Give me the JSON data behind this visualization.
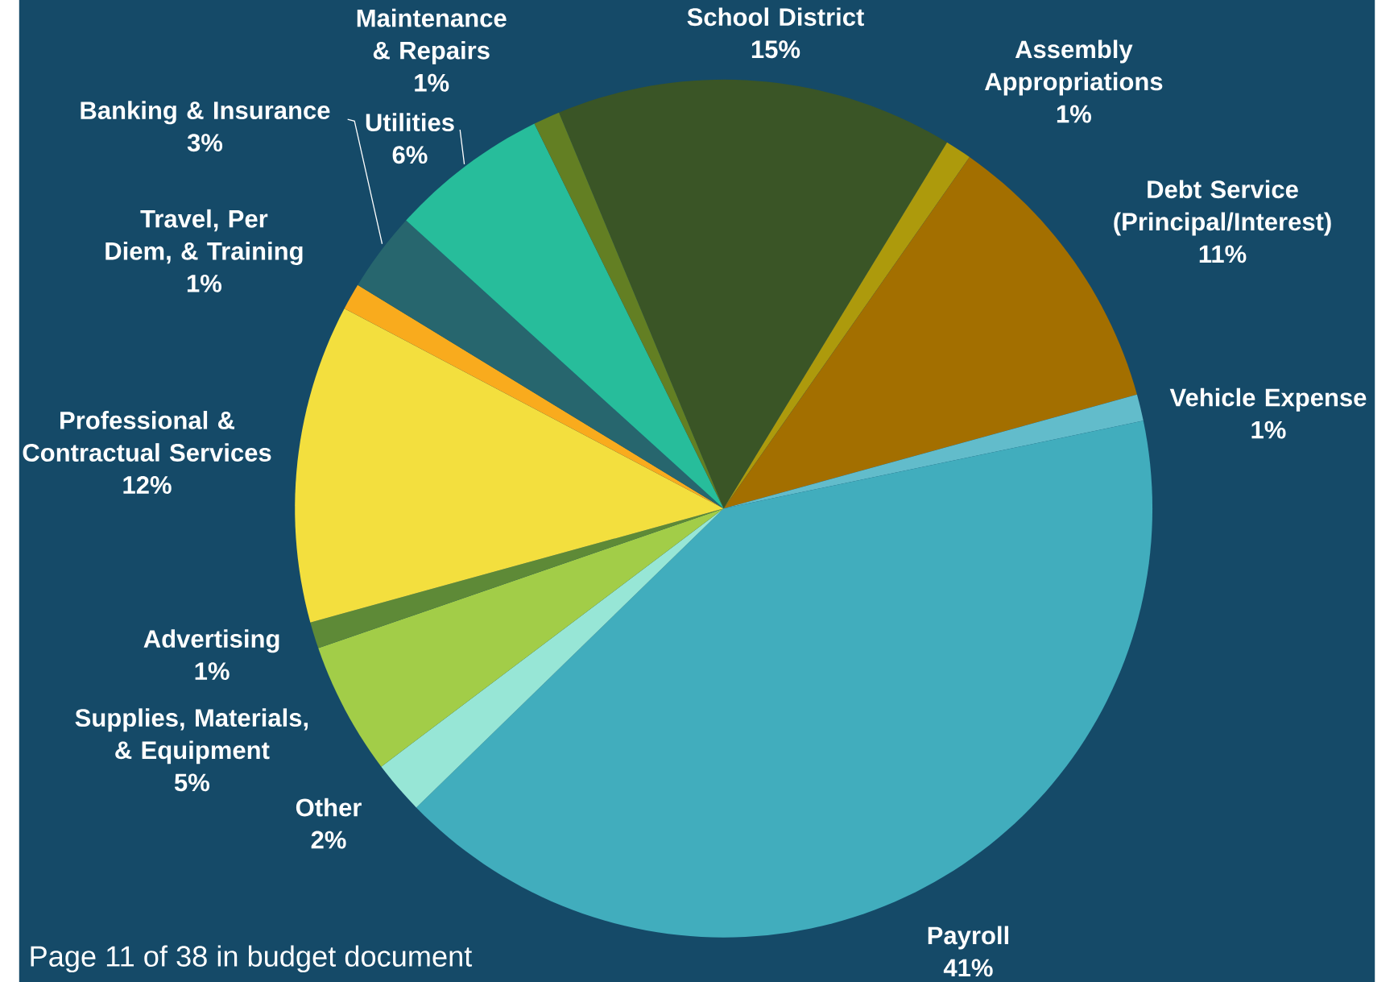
{
  "chart_data": {
    "type": "pie",
    "categories": [
      "School District",
      "Assembly Appropriations",
      "Debt Service (Principal/Interest)",
      "Vehicle Expense",
      "Payroll",
      "Other",
      "Supplies, Materials, & Equipment",
      "Advertising",
      "Professional & Contractual Services",
      "Travel, Per Diem, & Training",
      "Banking & Insurance",
      "Utilities",
      "Maintenance & Repairs"
    ],
    "values": [
      15,
      1,
      11,
      1,
      41,
      2,
      5,
      1,
      12,
      1,
      3,
      6,
      1
    ],
    "value_labels": [
      "15%",
      "1%",
      "11%",
      "1%",
      "41%",
      "2%",
      "5%",
      "1%",
      "12%",
      "1%",
      "3%",
      "6%",
      "1%"
    ],
    "colors": [
      "#3a5526",
      "#ad9a0c",
      "#a36f00",
      "#62bccb",
      "#41adbd",
      "#97e6d6",
      "#a2cd48",
      "#5e8a37",
      "#f3df3e",
      "#f9ab1d",
      "#27666e",
      "#27bd9b",
      "#637f23"
    ],
    "annotations": [
      "Page 11 of 38 in budget document"
    ]
  }
}
